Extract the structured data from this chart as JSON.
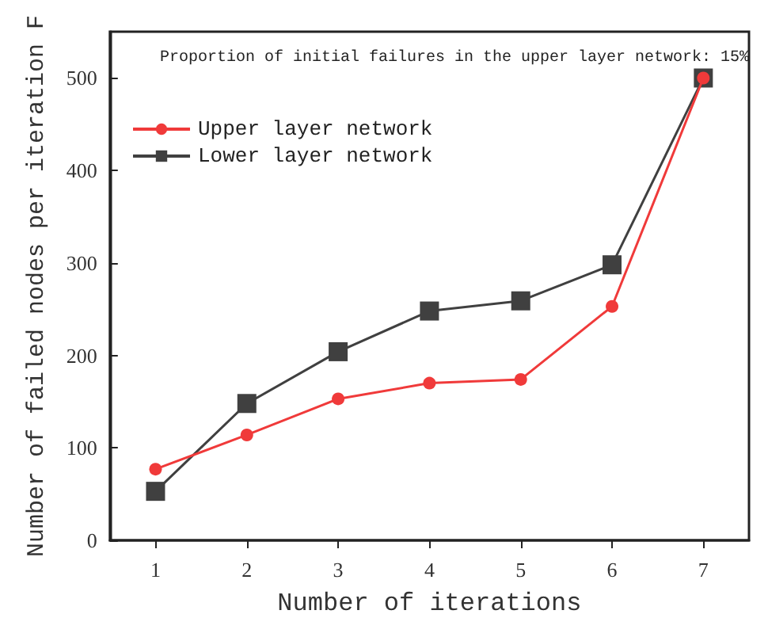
{
  "chart_data": {
    "type": "line",
    "xlabel": "Number of iterations",
    "ylabel": "Number of failed nodes per iteration F",
    "annotations": [
      "Proportion of initial failures in the upper layer network: 15%"
    ],
    "x": [
      1,
      2,
      3,
      4,
      5,
      6,
      7
    ],
    "series": [
      {
        "name": "Upper layer network",
        "color": "#f03a3a",
        "marker": "circle",
        "values": [
          77,
          114,
          153,
          170,
          174,
          253,
          500
        ]
      },
      {
        "name": "Lower layer network",
        "color": "#404040",
        "marker": "square",
        "values": [
          53,
          148,
          204,
          248,
          259,
          298,
          500
        ]
      }
    ],
    "xlim": [
      0.5,
      7.5
    ],
    "xticks": [
      1,
      2,
      3,
      4,
      5,
      6,
      7
    ],
    "ylim": [
      0,
      550
    ],
    "yticks": [
      0,
      100,
      200,
      300,
      400,
      500
    ],
    "grid": false,
    "legend": "top left"
  }
}
